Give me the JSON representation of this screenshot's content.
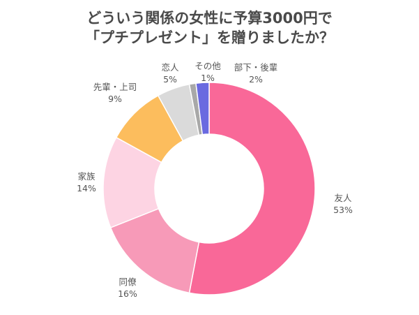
{
  "title": {
    "line1": "どういう関係の女性に予算3000円で",
    "line2": "「プチプレゼント」を贈りましたか？"
  },
  "chart_data": {
    "type": "pie",
    "donut": true,
    "title": "どういう関係の女性に予算3000円で「プチプレゼント」を贈りましたか？",
    "start": "12 o'clock",
    "direction": "clockwise",
    "slices": [
      {
        "label": "友人",
        "value": 53,
        "value_label": "53%",
        "color": "#f96898"
      },
      {
        "label": "同僚",
        "value": 16,
        "value_label": "16%",
        "color": "#f79ab8"
      },
      {
        "label": "家族",
        "value": 14,
        "value_label": "14%",
        "color": "#fdd4e3"
      },
      {
        "label": "先輩・上司",
        "value": 9,
        "value_label": "9%",
        "color": "#fcbd5d"
      },
      {
        "label": "恋人",
        "value": 5,
        "value_label": "5%",
        "color": "#dadada"
      },
      {
        "label": "その他",
        "value": 1,
        "value_label": "1%",
        "color": "#a8a8a8"
      },
      {
        "label": "部下・後輩",
        "value": 2,
        "value_label": "2%",
        "color": "#6a6ae0"
      }
    ]
  }
}
